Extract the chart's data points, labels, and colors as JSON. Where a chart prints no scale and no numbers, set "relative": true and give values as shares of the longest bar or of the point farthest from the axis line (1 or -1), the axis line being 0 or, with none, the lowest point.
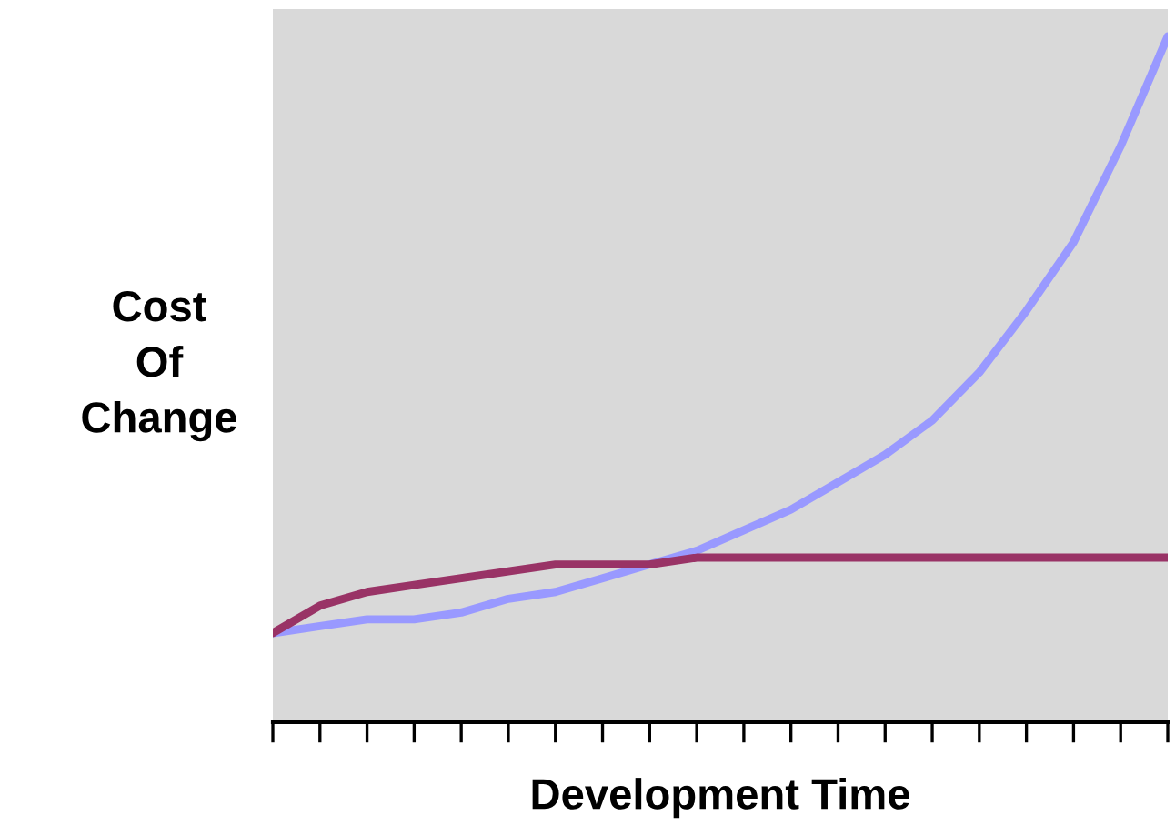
{
  "chart_data": {
    "type": "line",
    "xlabel": "Development Time",
    "ylabel": "Cost\nOf\nChange",
    "relative": true,
    "tick_labels": false,
    "categories": [
      null,
      null,
      null,
      null,
      null,
      null,
      null,
      null,
      null,
      null,
      null,
      null,
      null,
      null,
      null,
      null,
      null,
      null,
      null,
      null
    ],
    "series": [
      {
        "color": "#9999ff",
        "values": [
          0.13,
          0.14,
          0.15,
          0.15,
          0.16,
          0.18,
          0.19,
          0.21,
          0.23,
          0.25,
          0.28,
          0.31,
          0.35,
          0.39,
          0.44,
          0.51,
          0.6,
          0.7,
          0.84,
          1.0
        ]
      },
      {
        "color": "#993366",
        "values": [
          0.13,
          0.17,
          0.19,
          0.2,
          0.21,
          0.22,
          0.23,
          0.23,
          0.23,
          0.24,
          0.24,
          0.24,
          0.24,
          0.24,
          0.24,
          0.24,
          0.24,
          0.24,
          0.24,
          0.24
        ]
      }
    ]
  }
}
